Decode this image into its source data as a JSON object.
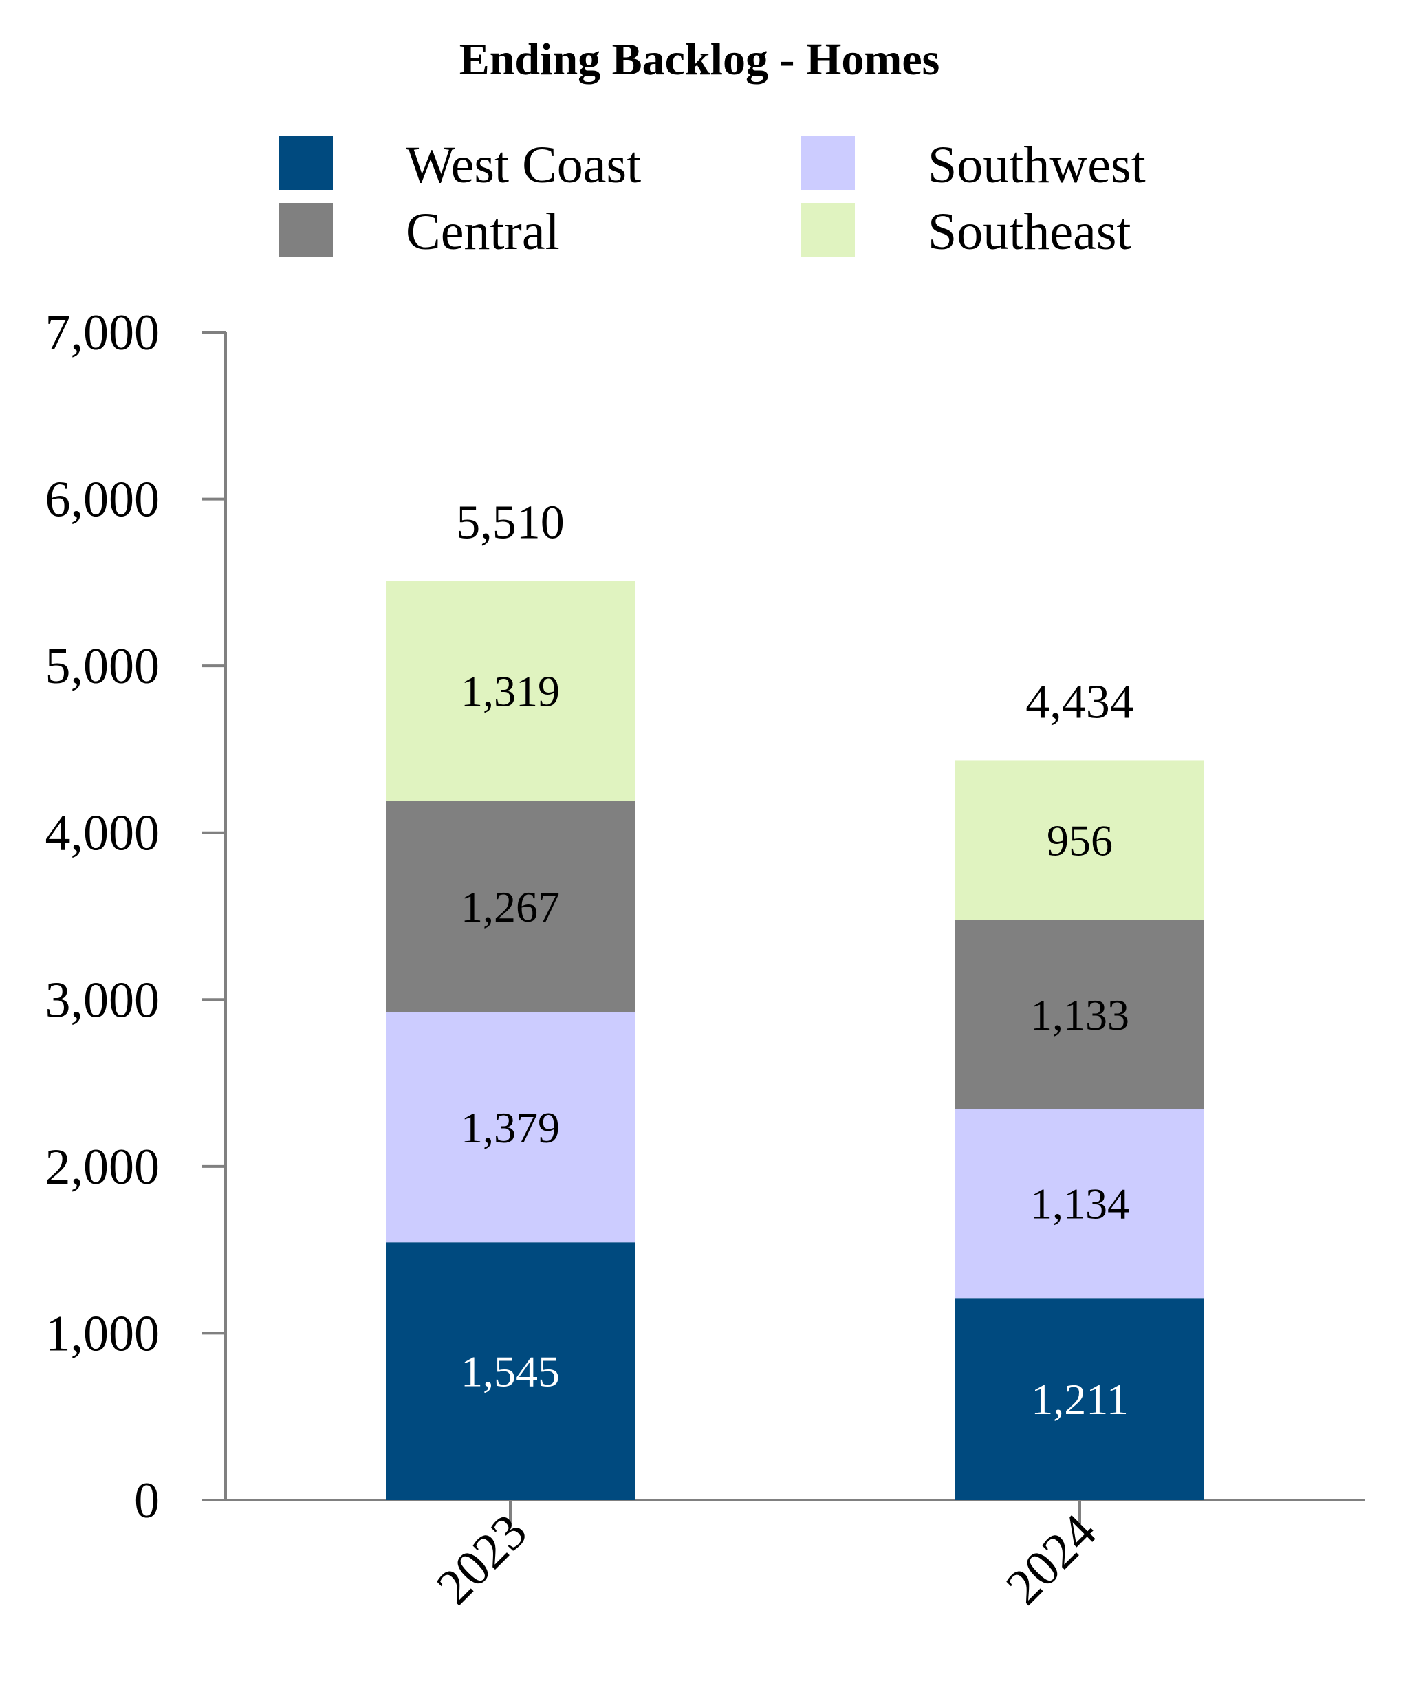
{
  "chart_data": {
    "type": "bar",
    "stacked": true,
    "title": "Ending Backlog - Homes",
    "categories": [
      "2023",
      "2024"
    ],
    "series": [
      {
        "name": "West Coast",
        "color": "#004A7F",
        "values": [
          1545,
          1211
        ],
        "label_color": "#ffffff"
      },
      {
        "name": "Southwest",
        "color": "#CCCCFF",
        "values": [
          1379,
          1134
        ],
        "label_color": "#000000"
      },
      {
        "name": "Central",
        "color": "#808080",
        "values": [
          1267,
          1133
        ],
        "label_color": "#000000"
      },
      {
        "name": "Southeast",
        "color": "#E0F3C0",
        "values": [
          1319,
          956
        ],
        "label_color": "#000000"
      }
    ],
    "series_value_labels": [
      [
        "1,545",
        "1,211"
      ],
      [
        "1,379",
        "1,134"
      ],
      [
        "1,267",
        "1,133"
      ],
      [
        "1,319",
        "956"
      ]
    ],
    "totals": [
      5510,
      4434
    ],
    "total_labels": [
      "5,510",
      "4,434"
    ],
    "legend_entries": [
      "West Coast",
      "Southwest",
      "Central",
      "Southeast"
    ],
    "legend_position": "top",
    "ylim": [
      0,
      7000
    ],
    "yticks": [
      0,
      1000,
      2000,
      3000,
      4000,
      5000,
      6000,
      7000
    ],
    "ytick_labels": [
      "0",
      "1,000",
      "2,000",
      "3,000",
      "4,000",
      "5,000",
      "6,000",
      "7,000"
    ],
    "xlabel": "",
    "ylabel": "",
    "grid": false,
    "axis_color": "#808080"
  }
}
